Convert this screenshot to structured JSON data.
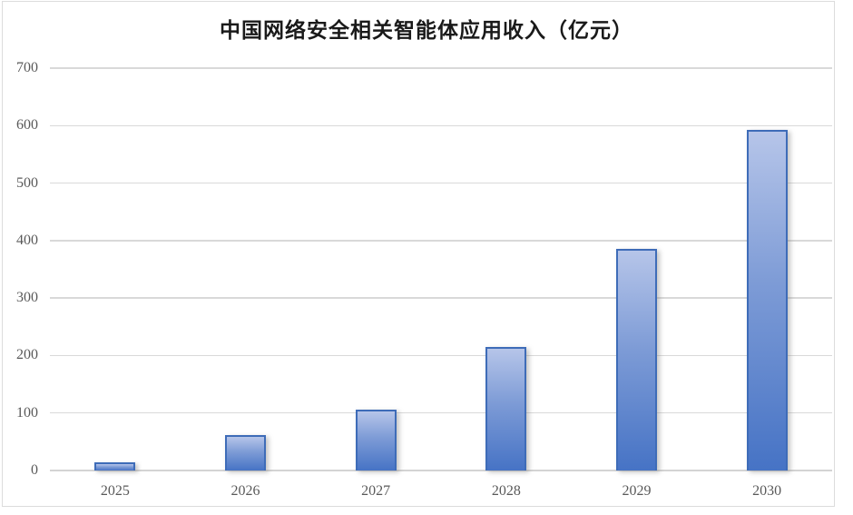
{
  "title": "中国网络安全相关智能体应用收入（亿元）",
  "chart_data": {
    "type": "bar",
    "title": "中国网络安全相关智能体应用收入（亿元）",
    "categories": [
      "2025",
      "2026",
      "2027",
      "2028",
      "2029",
      "2030"
    ],
    "values": [
      15,
      62,
      106,
      215,
      385,
      592
    ],
    "xlabel": "",
    "ylabel": "",
    "ylim": [
      0,
      700
    ],
    "yticks": [
      0,
      100,
      200,
      300,
      400,
      500,
      600,
      700
    ],
    "grid": "horizontal",
    "legend": "none",
    "colors": {
      "bar_fill_top": "#b6c5e9",
      "bar_fill_bottom": "#4673c5",
      "bar_border": "#3e6cb8",
      "gridline": "#d9d9d9",
      "axis_line": "#d4d4d4",
      "tick_label": "#595959",
      "title": "#1a1a1a",
      "frame_border": "#dcdcdc",
      "background": "#ffffff"
    }
  }
}
